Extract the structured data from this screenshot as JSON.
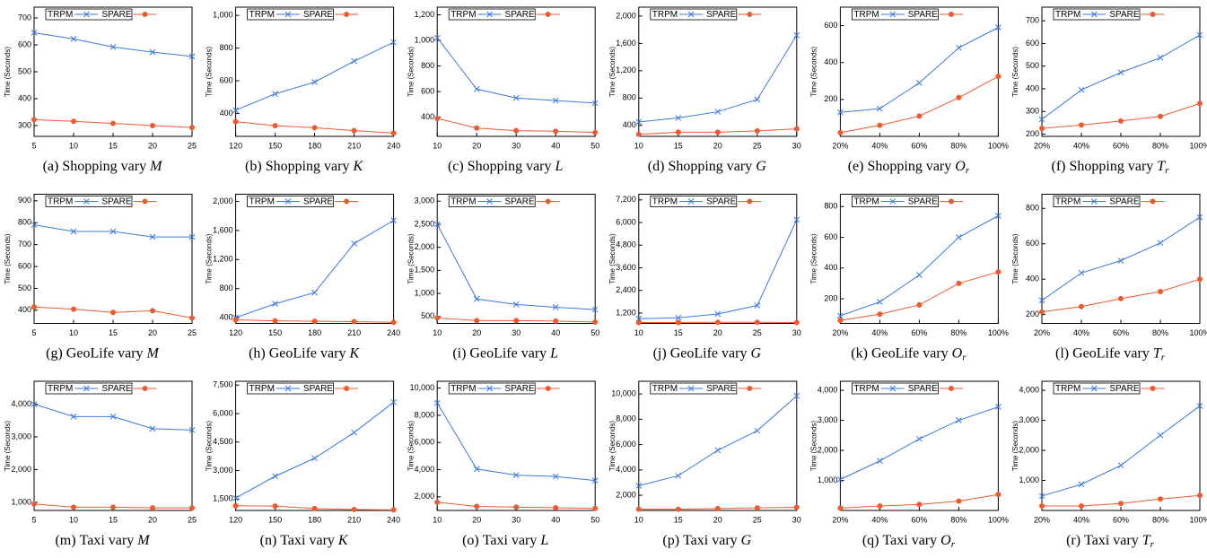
{
  "chart_data": [
    {
      "type": "line",
      "ylabel": "Time (Seconds)",
      "label": "(a)",
      "caption": "Shopping vary",
      "var": "M",
      "categories": [
        5,
        10,
        15,
        20,
        25
      ],
      "ylim": [
        260,
        740
      ],
      "yticks": [
        300,
        400,
        500,
        600,
        700
      ],
      "series": [
        {
          "name": "TRPM",
          "color": "#3b78e0",
          "marker": "x",
          "values": [
            645,
            622,
            592,
            573,
            557
          ]
        },
        {
          "name": "SPARE",
          "color": "#ee5a30",
          "marker": "circle",
          "values": [
            322,
            316,
            308,
            300,
            293
          ]
        }
      ]
    },
    {
      "type": "line",
      "ylabel": "Time (Seconds)",
      "label": "(b)",
      "caption": "Shopping vary",
      "var": "K",
      "categories": [
        120,
        150,
        180,
        210,
        240
      ],
      "ylim": [
        260,
        1050
      ],
      "yticks": [
        400,
        600,
        800,
        {
          "value": 1000,
          "label": "1,000"
        }
      ],
      "series": [
        {
          "name": "TRPM",
          "color": "#3b78e0",
          "marker": "x",
          "values": [
            420,
            520,
            592,
            720,
            835
          ]
        },
        {
          "name": "SPARE",
          "color": "#ee5a30",
          "marker": "circle",
          "values": [
            350,
            325,
            313,
            295,
            280
          ]
        }
      ]
    },
    {
      "type": "line",
      "ylabel": "Time (Seconds)",
      "label": "(c)",
      "caption": "Shopping vary",
      "var": "L",
      "categories": [
        10,
        20,
        30,
        40,
        50
      ],
      "ylim": [
        250,
        1260
      ],
      "yticks": [
        400,
        600,
        800,
        {
          "value": 1000,
          "label": "1,000"
        },
        {
          "value": 1200,
          "label": "1,200"
        }
      ],
      "series": [
        {
          "name": "TRPM",
          "color": "#3b78e0",
          "marker": "x",
          "values": [
            1020,
            620,
            550,
            530,
            510
          ]
        },
        {
          "name": "SPARE",
          "color": "#ee5a30",
          "marker": "circle",
          "values": [
            390,
            315,
            295,
            290,
            280
          ]
        }
      ]
    },
    {
      "type": "line",
      "ylabel": "Time (Seconds)",
      "label": "(d)",
      "caption": "Shopping vary",
      "var": "G",
      "categories": [
        10,
        15,
        20,
        25,
        30
      ],
      "ylim": [
        240,
        2130
      ],
      "yticks": [
        400,
        800,
        {
          "value": 1200,
          "label": "1,200"
        },
        {
          "value": 1600,
          "label": "1,600"
        },
        {
          "value": 2000,
          "label": "2,000"
        }
      ],
      "series": [
        {
          "name": "TRPM",
          "color": "#3b78e0",
          "marker": "x",
          "values": [
            450,
            510,
            600,
            780,
            1720
          ]
        },
        {
          "name": "SPARE",
          "color": "#ee5a30",
          "marker": "circle",
          "values": [
            270,
            300,
            300,
            320,
            350
          ]
        }
      ]
    },
    {
      "type": "line",
      "ylabel": "Time (Seconds)",
      "label": "(e)",
      "caption": "Shopping vary",
      "var": "O",
      "sub": "r",
      "categories": [
        "20%",
        "40%",
        "60%",
        "80%",
        "100%"
      ],
      "ylim": [
        0,
        700
      ],
      "yticks": [
        200,
        400,
        600
      ],
      "series": [
        {
          "name": "TRPM",
          "color": "#3b78e0",
          "marker": "x",
          "values": [
            130,
            150,
            290,
            480,
            590
          ]
        },
        {
          "name": "SPARE",
          "color": "#ee5a30",
          "marker": "circle",
          "values": [
            20,
            60,
            110,
            210,
            325
          ]
        }
      ]
    },
    {
      "type": "line",
      "ylabel": "Time (Seconds)",
      "label": "(f)",
      "caption": "Shopping vary",
      "var": "T",
      "sub": "r",
      "categories": [
        "20%",
        "40%",
        "60%",
        "80%",
        "100%"
      ],
      "ylim": [
        190,
        760
      ],
      "yticks": [
        200,
        300,
        400,
        500,
        600,
        700
      ],
      "series": [
        {
          "name": "TRPM",
          "color": "#3b78e0",
          "marker": "x",
          "values": [
            265,
            395,
            472,
            537,
            637
          ]
        },
        {
          "name": "SPARE",
          "color": "#ee5a30",
          "marker": "circle",
          "values": [
            225,
            240,
            258,
            278,
            335
          ]
        }
      ]
    },
    {
      "type": "line",
      "ylabel": "Time (Seconds)",
      "label": "(g)",
      "caption": "GeoLife vary",
      "var": "M",
      "categories": [
        5,
        10,
        15,
        20,
        25
      ],
      "ylim": [
        340,
        930
      ],
      "yticks": [
        400,
        500,
        600,
        700,
        800,
        900
      ],
      "series": [
        {
          "name": "TRPM",
          "color": "#3b78e0",
          "marker": "x",
          "values": [
            790,
            760,
            760,
            735,
            735
          ]
        },
        {
          "name": "SPARE",
          "color": "#ee5a30",
          "marker": "circle",
          "values": [
            415,
            405,
            390,
            398,
            365
          ]
        }
      ]
    },
    {
      "type": "line",
      "ylabel": "Time (Seconds)",
      "label": "(h)",
      "caption": "GeoLife vary",
      "var": "K",
      "categories": [
        120,
        150,
        180,
        210,
        240
      ],
      "ylim": [
        320,
        2100
      ],
      "yticks": [
        400,
        800,
        {
          "value": 1200,
          "label": "1,200"
        },
        {
          "value": 1600,
          "label": "1,600"
        },
        {
          "value": 2000,
          "label": "2,000"
        }
      ],
      "series": [
        {
          "name": "TRPM",
          "color": "#3b78e0",
          "marker": "x",
          "values": [
            400,
            590,
            745,
            1420,
            1740
          ]
        },
        {
          "name": "SPARE",
          "color": "#ee5a30",
          "marker": "circle",
          "values": [
            370,
            355,
            350,
            345,
            335
          ]
        }
      ]
    },
    {
      "type": "line",
      "ylabel": "Time (Seconds)",
      "label": "(i)",
      "caption": "GeoLife vary",
      "var": "L",
      "categories": [
        10,
        20,
        30,
        40,
        50
      ],
      "ylim": [
        350,
        3150
      ],
      "yticks": [
        500,
        {
          "value": 1000,
          "label": "1,000"
        },
        {
          "value": 1500,
          "label": "1,500"
        },
        {
          "value": 2000,
          "label": "2,000"
        },
        {
          "value": 2500,
          "label": "2,500"
        },
        {
          "value": 3000,
          "label": "3,000"
        }
      ],
      "series": [
        {
          "name": "TRPM",
          "color": "#3b78e0",
          "marker": "x",
          "values": [
            2500,
            880,
            760,
            700,
            650
          ]
        },
        {
          "name": "SPARE",
          "color": "#ee5a30",
          "marker": "circle",
          "values": [
            470,
            410,
            410,
            400,
            380
          ]
        }
      ]
    },
    {
      "type": "line",
      "ylabel": "Time (Seconds)",
      "label": "(j)",
      "caption": "GeoLife vary",
      "var": "G",
      "categories": [
        10,
        15,
        20,
        25,
        30
      ],
      "ylim": [
        650,
        7500
      ],
      "yticks": [
        {
          "value": 1200,
          "label": "1,200"
        },
        {
          "value": 2400,
          "label": "2,400"
        },
        {
          "value": 3600,
          "label": "3,600"
        },
        {
          "value": 4800,
          "label": "4,800"
        },
        {
          "value": 6000,
          "label": "6,000"
        },
        {
          "value": 7200,
          "label": "7,200"
        }
      ],
      "series": [
        {
          "name": "TRPM",
          "color": "#3b78e0",
          "marker": "x",
          "values": [
            900,
            950,
            1150,
            1600,
            6150
          ]
        },
        {
          "name": "SPARE",
          "color": "#ee5a30",
          "marker": "circle",
          "values": [
            700,
            700,
            710,
            710,
            700
          ]
        }
      ]
    },
    {
      "type": "line",
      "ylabel": "Time (Seconds)",
      "label": "(k)",
      "caption": "GeoLife vary",
      "var": "O",
      "sub": "r",
      "categories": [
        "20%",
        "40%",
        "60%",
        "80%",
        "100%"
      ],
      "ylim": [
        40,
        880
      ],
      "yticks": [
        200,
        400,
        600,
        800
      ],
      "series": [
        {
          "name": "TRPM",
          "color": "#3b78e0",
          "marker": "x",
          "values": [
            90,
            180,
            355,
            600,
            740
          ]
        },
        {
          "name": "SPARE",
          "color": "#ee5a30",
          "marker": "circle",
          "values": [
            60,
            100,
            160,
            300,
            375
          ]
        }
      ]
    },
    {
      "type": "line",
      "ylabel": "Time (Seconds)",
      "label": "(l)",
      "caption": "GeoLife vary",
      "var": "T",
      "sub": "r",
      "categories": [
        "20%",
        "40%",
        "60%",
        "80%",
        "100%"
      ],
      "ylim": [
        150,
        880
      ],
      "yticks": [
        200,
        400,
        600,
        800
      ],
      "series": [
        {
          "name": "TRPM",
          "color": "#3b78e0",
          "marker": "x",
          "values": [
            280,
            435,
            505,
            605,
            750
          ]
        },
        {
          "name": "SPARE",
          "color": "#ee5a30",
          "marker": "circle",
          "values": [
            215,
            245,
            290,
            330,
            400
          ]
        }
      ]
    },
    {
      "type": "line",
      "ylabel": "Time (Seconds)",
      "label": "(m)",
      "caption": "Taxi vary",
      "var": "M",
      "categories": [
        5,
        10,
        15,
        20,
        25
      ],
      "ylim": [
        750,
        4700
      ],
      "yticks": [
        {
          "value": 1000,
          "label": "1,000"
        },
        {
          "value": 2000,
          "label": "2,000"
        },
        {
          "value": 3000,
          "label": "3,000"
        },
        {
          "value": 4000,
          "label": "4,000"
        }
      ],
      "series": [
        {
          "name": "TRPM",
          "color": "#3b78e0",
          "marker": "x",
          "values": [
            4000,
            3620,
            3620,
            3250,
            3210
          ]
        },
        {
          "name": "SPARE",
          "color": "#ee5a30",
          "marker": "circle",
          "values": [
            950,
            850,
            850,
            830,
            830
          ]
        }
      ]
    },
    {
      "type": "line",
      "ylabel": "Time (Seconds)",
      "label": "(n)",
      "caption": "Taxi vary",
      "var": "K",
      "categories": [
        120,
        150,
        180,
        210,
        240
      ],
      "ylim": [
        900,
        7700
      ],
      "yticks": [
        {
          "value": 1500,
          "label": "1,500"
        },
        {
          "value": 3000,
          "label": "3,000"
        },
        {
          "value": 4500,
          "label": "4,500"
        },
        {
          "value": 6000,
          "label": "6,000"
        },
        {
          "value": 7500,
          "label": "7,500"
        }
      ],
      "series": [
        {
          "name": "TRPM",
          "color": "#3b78e0",
          "marker": "x",
          "values": [
            1550,
            2700,
            3650,
            5000,
            6600
          ]
        },
        {
          "name": "SPARE",
          "color": "#ee5a30",
          "marker": "circle",
          "values": [
            1150,
            1130,
            1000,
            950,
            930
          ]
        }
      ]
    },
    {
      "type": "line",
      "ylabel": "Time (Seconds)",
      "label": "(o)",
      "caption": "Taxi vary",
      "var": "L",
      "categories": [
        10,
        20,
        30,
        40,
        50
      ],
      "ylim": [
        1000,
        10500
      ],
      "yticks": [
        {
          "value": 2000,
          "label": "2,000"
        },
        {
          "value": 4000,
          "label": "4,000"
        },
        {
          "value": 6000,
          "label": "6,000"
        },
        {
          "value": 8000,
          "label": "8,000"
        },
        {
          "value": 10000,
          "label": "10,000"
        }
      ],
      "series": [
        {
          "name": "TRPM",
          "color": "#3b78e0",
          "marker": "x",
          "values": [
            8900,
            4050,
            3600,
            3500,
            3200
          ]
        },
        {
          "name": "SPARE",
          "color": "#ee5a30",
          "marker": "circle",
          "values": [
            1600,
            1300,
            1250,
            1200,
            1150
          ]
        }
      ]
    },
    {
      "type": "line",
      "ylabel": "Time (Seconds)",
      "label": "(p)",
      "caption": "Taxi vary",
      "var": "G",
      "categories": [
        10,
        15,
        20,
        25,
        30
      ],
      "ylim": [
        800,
        11000
      ],
      "yticks": [
        {
          "value": 2000,
          "label": "2,000"
        },
        {
          "value": 4000,
          "label": "4,000"
        },
        {
          "value": 6000,
          "label": "6,000"
        },
        {
          "value": 8000,
          "label": "8,000"
        },
        {
          "value": 10000,
          "label": "10,000"
        }
      ],
      "series": [
        {
          "name": "TRPM",
          "color": "#3b78e0",
          "marker": "x",
          "values": [
            2750,
            3550,
            5550,
            7100,
            9850
          ]
        },
        {
          "name": "SPARE",
          "color": "#ee5a30",
          "marker": "circle",
          "values": [
            900,
            900,
            950,
            1000,
            1050
          ]
        }
      ]
    },
    {
      "type": "line",
      "ylabel": "Time (Seconds)",
      "label": "(q)",
      "caption": "Taxi vary",
      "var": "O",
      "sub": "r",
      "categories": [
        "20%",
        "40%",
        "60%",
        "80%",
        "100%"
      ],
      "ylim": [
        0,
        4300
      ],
      "yticks": [
        {
          "value": 1000,
          "label": "1,000"
        },
        {
          "value": 2000,
          "label": "2,000"
        },
        {
          "value": 3000,
          "label": "3,000"
        },
        {
          "value": 4000,
          "label": "4,000"
        }
      ],
      "series": [
        {
          "name": "TRPM",
          "color": "#3b78e0",
          "marker": "x",
          "values": [
            1030,
            1650,
            2380,
            3000,
            3450
          ]
        },
        {
          "name": "SPARE",
          "color": "#ee5a30",
          "marker": "circle",
          "values": [
            80,
            150,
            200,
            310,
            530
          ]
        }
      ]
    },
    {
      "type": "line",
      "ylabel": "Time (Seconds)",
      "label": "(r)",
      "caption": "Taxi vary",
      "var": "T",
      "sub": "r",
      "categories": [
        "20%",
        "40%",
        "60%",
        "80%",
        "100%"
      ],
      "ylim": [
        0,
        4300
      ],
      "yticks": [
        {
          "value": 1000,
          "label": "1,000"
        },
        {
          "value": 2000,
          "label": "2,000"
        },
        {
          "value": 3000,
          "label": "3,000"
        },
        {
          "value": 4000,
          "label": "4,000"
        }
      ],
      "series": [
        {
          "name": "TRPM",
          "color": "#3b78e0",
          "marker": "x",
          "values": [
            480,
            870,
            1500,
            2500,
            3480
          ]
        },
        {
          "name": "SPARE",
          "color": "#ee5a30",
          "marker": "circle",
          "values": [
            150,
            150,
            230,
            380,
            500
          ]
        }
      ]
    }
  ]
}
